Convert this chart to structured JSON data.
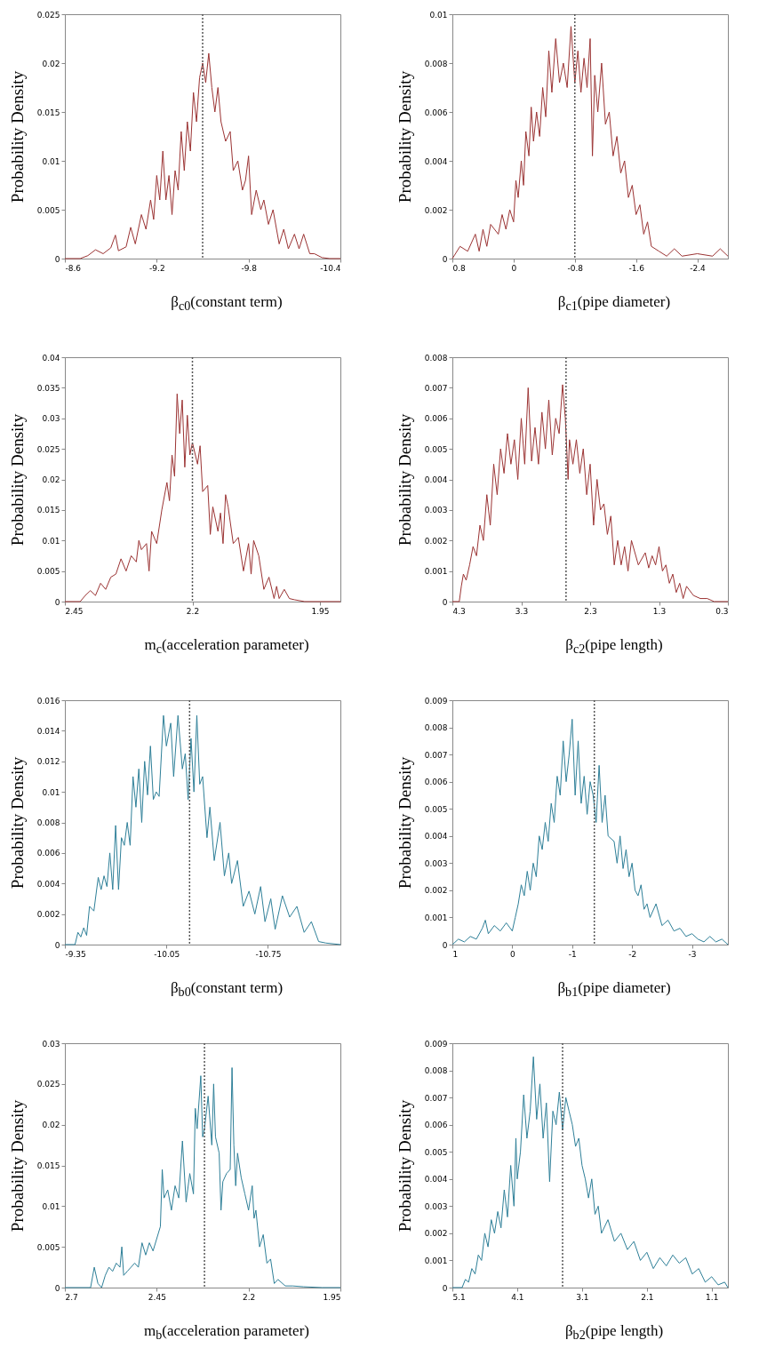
{
  "chart_data": [
    {
      "type": "line",
      "xlabel": "β$_{c0}$(constant term)",
      "ylabel": "Probability Density",
      "xlim": [
        -8.6,
        -10.4
      ],
      "xticks": [
        -8.6,
        -9.2,
        -9.8,
        -10.4
      ],
      "ylim": [
        0,
        0.025
      ],
      "yticks": [
        0,
        0.005,
        0.01,
        0.015,
        0.02,
        0.025
      ],
      "grid": false,
      "ref_lines": [
        {
          "axis": "x",
          "value": -9.5,
          "color": "#555555",
          "line_style": "dotted"
        }
      ],
      "series": [
        {
          "color": "#9b3333",
          "x": [
            -8.6,
            -8.7,
            -8.75,
            -8.8,
            -8.85,
            -8.9,
            -8.93,
            -8.95,
            -9.0,
            -9.03,
            -9.06,
            -9.1,
            -9.13,
            -9.16,
            -9.18,
            -9.2,
            -9.22,
            -9.24,
            -9.26,
            -9.28,
            -9.3,
            -9.32,
            -9.34,
            -9.36,
            -9.38,
            -9.4,
            -9.42,
            -9.44,
            -9.46,
            -9.48,
            -9.5,
            -9.52,
            -9.54,
            -9.56,
            -9.58,
            -9.6,
            -9.62,
            -9.65,
            -9.68,
            -9.7,
            -9.73,
            -9.76,
            -9.78,
            -9.8,
            -9.82,
            -9.85,
            -9.88,
            -9.9,
            -9.93,
            -9.96,
            -10.0,
            -10.03,
            -10.06,
            -10.1,
            -10.13,
            -10.16,
            -10.2,
            -10.23,
            -10.28,
            -10.33,
            -10.4
          ],
          "values": [
            0,
            0,
            0.0003,
            0.0009,
            0.0005,
            0.0011,
            0.0024,
            0.0008,
            0.0012,
            0.0032,
            0.0015,
            0.0045,
            0.003,
            0.006,
            0.004,
            0.0085,
            0.006,
            0.011,
            0.006,
            0.0085,
            0.0045,
            0.009,
            0.007,
            0.013,
            0.009,
            0.014,
            0.011,
            0.017,
            0.014,
            0.0185,
            0.02,
            0.018,
            0.021,
            0.0175,
            0.015,
            0.0175,
            0.014,
            0.012,
            0.013,
            0.009,
            0.01,
            0.007,
            0.008,
            0.0105,
            0.0045,
            0.007,
            0.005,
            0.006,
            0.0035,
            0.005,
            0.0015,
            0.003,
            0.001,
            0.0025,
            0.001,
            0.0025,
            0.0005,
            0.0005,
            0.0001,
            0,
            0
          ]
        }
      ]
    },
    {
      "type": "line",
      "xlabel": "β$_{c1}$(pipe diameter)",
      "ylabel": "Probability Density",
      "xlim": [
        0.8,
        -2.8
      ],
      "xticks": [
        0.8,
        0,
        -0.8,
        -1.6,
        -2.4
      ],
      "ylim": [
        0,
        0.01
      ],
      "yticks": [
        0,
        0.002,
        0.004,
        0.006,
        0.008,
        0.01
      ],
      "grid": false,
      "ref_lines": [
        {
          "axis": "x",
          "value": -0.8,
          "color": "#555555",
          "line_style": "dotted"
        }
      ],
      "series": [
        {
          "color": "#9b3333",
          "x": [
            0.8,
            0.7,
            0.6,
            0.5,
            0.45,
            0.4,
            0.35,
            0.3,
            0.2,
            0.15,
            0.1,
            0.05,
            0,
            -0.03,
            -0.06,
            -0.1,
            -0.13,
            -0.16,
            -0.2,
            -0.23,
            -0.26,
            -0.3,
            -0.34,
            -0.38,
            -0.42,
            -0.46,
            -0.5,
            -0.55,
            -0.6,
            -0.65,
            -0.7,
            -0.75,
            -0.8,
            -0.84,
            -0.88,
            -0.92,
            -0.96,
            -1.0,
            -1.03,
            -1.06,
            -1.1,
            -1.15,
            -1.2,
            -1.25,
            -1.3,
            -1.35,
            -1.4,
            -1.45,
            -1.5,
            -1.55,
            -1.6,
            -1.65,
            -1.7,
            -1.75,
            -1.8,
            -1.9,
            -2.0,
            -2.1,
            -2.2,
            -2.4,
            -2.6,
            -2.7,
            -2.8
          ],
          "values": [
            0,
            0.0005,
            0.0003,
            0.001,
            0.0003,
            0.0012,
            0.0005,
            0.0014,
            0.001,
            0.0018,
            0.0012,
            0.002,
            0.0015,
            0.0032,
            0.0025,
            0.004,
            0.003,
            0.0052,
            0.0042,
            0.0062,
            0.0048,
            0.006,
            0.005,
            0.007,
            0.0058,
            0.0085,
            0.0068,
            0.009,
            0.0072,
            0.008,
            0.007,
            0.0095,
            0.0072,
            0.0085,
            0.0068,
            0.0082,
            0.007,
            0.009,
            0.0042,
            0.0075,
            0.006,
            0.008,
            0.0055,
            0.006,
            0.0042,
            0.005,
            0.0035,
            0.004,
            0.0025,
            0.003,
            0.0018,
            0.0022,
            0.001,
            0.0015,
            0.0005,
            0.0003,
            0.0001,
            0.0004,
            0.0001,
            0.0002,
            0.0001,
            0.0004,
            0.0001
          ]
        }
      ]
    },
    {
      "type": "line",
      "xlabel": "m$_{c}$(acceleration parameter)",
      "ylabel": "Probability Density",
      "xlim": [
        2.45,
        1.91
      ],
      "xticks": [
        2.45,
        2.2,
        1.95
      ],
      "ylim": [
        0,
        0.04
      ],
      "yticks": [
        0,
        0.005,
        0.01,
        0.015,
        0.02,
        0.025,
        0.03,
        0.035,
        0.04
      ],
      "grid": false,
      "ref_lines": [
        {
          "axis": "x",
          "value": 2.2,
          "color": "#555555",
          "line_style": "dotted"
        }
      ],
      "series": [
        {
          "color": "#9b3333",
          "x": [
            2.45,
            2.42,
            2.41,
            2.4,
            2.39,
            2.38,
            2.37,
            2.36,
            2.35,
            2.34,
            2.33,
            2.32,
            2.31,
            2.305,
            2.3,
            2.29,
            2.285,
            2.28,
            2.27,
            2.26,
            2.25,
            2.245,
            2.24,
            2.235,
            2.23,
            2.225,
            2.22,
            2.215,
            2.21,
            2.205,
            2.2,
            2.19,
            2.185,
            2.18,
            2.17,
            2.165,
            2.16,
            2.15,
            2.145,
            2.14,
            2.135,
            2.13,
            2.12,
            2.11,
            2.1,
            2.09,
            2.085,
            2.08,
            2.07,
            2.06,
            2.05,
            2.04,
            2.035,
            2.03,
            2.02,
            2.01,
            2.0,
            1.98,
            1.91
          ],
          "values": [
            0,
            0,
            0.001,
            0.0018,
            0.001,
            0.003,
            0.002,
            0.004,
            0.0045,
            0.007,
            0.005,
            0.0075,
            0.0065,
            0.01,
            0.0085,
            0.0095,
            0.005,
            0.0115,
            0.0095,
            0.015,
            0.0195,
            0.0165,
            0.024,
            0.0205,
            0.034,
            0.0275,
            0.033,
            0.022,
            0.0305,
            0.024,
            0.026,
            0.0225,
            0.0255,
            0.018,
            0.019,
            0.011,
            0.0155,
            0.0115,
            0.0145,
            0.0095,
            0.0175,
            0.0155,
            0.0095,
            0.0105,
            0.005,
            0.0095,
            0.0045,
            0.01,
            0.0075,
            0.002,
            0.004,
            0.0005,
            0.0025,
            0.0005,
            0.002,
            0.0005,
            0.0003,
            0,
            0
          ]
        }
      ]
    },
    {
      "type": "line",
      "xlabel": "β$_{c2}$(pipe length)",
      "ylabel": "Probability Density",
      "xlim": [
        4.3,
        0.3
      ],
      "xticks": [
        4.3,
        3.3,
        2.3,
        1.3,
        0.3
      ],
      "ylim": [
        0,
        0.008
      ],
      "yticks": [
        0,
        0.001,
        0.002,
        0.003,
        0.004,
        0.005,
        0.006,
        0.007,
        0.008
      ],
      "grid": false,
      "ref_lines": [
        {
          "axis": "x",
          "value": 2.65,
          "color": "#555555",
          "line_style": "dotted"
        }
      ],
      "series": [
        {
          "color": "#9b3333",
          "x": [
            4.3,
            4.2,
            4.17,
            4.14,
            4.1,
            4.05,
            4.0,
            3.95,
            3.9,
            3.85,
            3.8,
            3.75,
            3.7,
            3.65,
            3.6,
            3.55,
            3.5,
            3.45,
            3.4,
            3.35,
            3.3,
            3.25,
            3.2,
            3.15,
            3.1,
            3.05,
            3.0,
            2.95,
            2.9,
            2.85,
            2.8,
            2.75,
            2.7,
            2.66,
            2.62,
            2.6,
            2.55,
            2.5,
            2.45,
            2.4,
            2.35,
            2.3,
            2.25,
            2.2,
            2.15,
            2.1,
            2.05,
            2.0,
            1.95,
            1.9,
            1.85,
            1.8,
            1.75,
            1.7,
            1.6,
            1.5,
            1.45,
            1.4,
            1.35,
            1.3,
            1.25,
            1.2,
            1.15,
            1.1,
            1.05,
            1.0,
            0.95,
            0.9,
            0.8,
            0.7,
            0.6,
            0.5,
            0.3
          ],
          "values": [
            0,
            0,
            0.0005,
            0.0009,
            0.0007,
            0.0012,
            0.0018,
            0.0015,
            0.0025,
            0.002,
            0.0035,
            0.0025,
            0.0045,
            0.0035,
            0.005,
            0.0042,
            0.0055,
            0.0045,
            0.0053,
            0.004,
            0.006,
            0.0045,
            0.007,
            0.0046,
            0.0057,
            0.0045,
            0.0062,
            0.005,
            0.0066,
            0.0048,
            0.006,
            0.0055,
            0.0071,
            0.006,
            0.004,
            0.0053,
            0.0045,
            0.0053,
            0.0042,
            0.005,
            0.0035,
            0.0045,
            0.0025,
            0.004,
            0.003,
            0.0032,
            0.0022,
            0.0028,
            0.0012,
            0.002,
            0.0012,
            0.0018,
            0.001,
            0.002,
            0.0012,
            0.0016,
            0.0011,
            0.0015,
            0.0012,
            0.0018,
            0.001,
            0.0012,
            0.0006,
            0.0009,
            0.0003,
            0.0006,
            0.0001,
            0.0005,
            0.0002,
            0.0001,
            0.0001,
            0,
            0
          ]
        }
      ]
    },
    {
      "type": "line",
      "xlabel": "β$_{b0}$(constant term)",
      "ylabel": "Probability Density",
      "xlim": [
        -9.35,
        -11.25
      ],
      "xticks": [
        -9.35,
        -10.05,
        -10.75
      ],
      "ylim": [
        0,
        0.016
      ],
      "yticks": [
        0,
        0.002,
        0.004,
        0.006,
        0.008,
        0.01,
        0.012,
        0.014,
        0.016
      ],
      "grid": false,
      "ref_lines": [
        {
          "axis": "x",
          "value": -10.21,
          "color": "#555555",
          "line_style": "dotted"
        }
      ],
      "series": [
        {
          "color": "#2e7f98",
          "x": [
            -9.35,
            -9.42,
            -9.44,
            -9.46,
            -9.48,
            -9.5,
            -9.52,
            -9.55,
            -9.58,
            -9.6,
            -9.62,
            -9.64,
            -9.66,
            -9.68,
            -9.7,
            -9.72,
            -9.74,
            -9.76,
            -9.78,
            -9.8,
            -9.82,
            -9.84,
            -9.86,
            -9.88,
            -9.9,
            -9.92,
            -9.94,
            -9.96,
            -9.98,
            -10.0,
            -10.03,
            -10.05,
            -10.08,
            -10.1,
            -10.13,
            -10.16,
            -10.18,
            -10.2,
            -10.22,
            -10.24,
            -10.26,
            -10.28,
            -10.3,
            -10.33,
            -10.35,
            -10.38,
            -10.42,
            -10.45,
            -10.48,
            -10.5,
            -10.54,
            -10.58,
            -10.62,
            -10.66,
            -10.7,
            -10.73,
            -10.77,
            -10.8,
            -10.85,
            -10.9,
            -10.95,
            -11.0,
            -11.05,
            -11.1,
            -11.15,
            -11.25
          ],
          "values": [
            0,
            0,
            0.0008,
            0.0005,
            0.0011,
            0.0006,
            0.0025,
            0.0022,
            0.0044,
            0.0036,
            0.0045,
            0.0038,
            0.006,
            0.0036,
            0.0078,
            0.0036,
            0.007,
            0.0065,
            0.008,
            0.0065,
            0.011,
            0.009,
            0.0115,
            0.008,
            0.012,
            0.0098,
            0.013,
            0.0095,
            0.01,
            0.0097,
            0.015,
            0.013,
            0.0145,
            0.011,
            0.015,
            0.0115,
            0.0125,
            0.0095,
            0.0135,
            0.01,
            0.015,
            0.0105,
            0.011,
            0.007,
            0.009,
            0.0055,
            0.008,
            0.0045,
            0.006,
            0.004,
            0.0055,
            0.0025,
            0.0035,
            0.002,
            0.0038,
            0.0015,
            0.003,
            0.001,
            0.0032,
            0.0018,
            0.0025,
            0.0008,
            0.0015,
            0.0002,
            0.0001,
            0
          ]
        }
      ]
    },
    {
      "type": "line",
      "xlabel": "β$_{b1}$(pipe diameter)",
      "ylabel": "Probability Density",
      "xlim": [
        1,
        -3.6
      ],
      "xticks": [
        1,
        0,
        -1,
        -2,
        -3
      ],
      "ylim": [
        0,
        0.009
      ],
      "yticks": [
        0,
        0.001,
        0.002,
        0.003,
        0.004,
        0.005,
        0.006,
        0.007,
        0.008,
        0.009
      ],
      "grid": false,
      "ref_lines": [
        {
          "axis": "x",
          "value": -1.37,
          "color": "#555555",
          "line_style": "dotted"
        }
      ],
      "series": [
        {
          "color": "#2e7f98",
          "x": [
            1,
            0.9,
            0.8,
            0.7,
            0.6,
            0.5,
            0.45,
            0.4,
            0.3,
            0.2,
            0.1,
            0,
            -0.05,
            -0.1,
            -0.15,
            -0.2,
            -0.25,
            -0.3,
            -0.35,
            -0.4,
            -0.45,
            -0.5,
            -0.55,
            -0.6,
            -0.65,
            -0.7,
            -0.75,
            -0.8,
            -0.85,
            -0.9,
            -0.95,
            -1.0,
            -1.05,
            -1.1,
            -1.15,
            -1.2,
            -1.25,
            -1.3,
            -1.35,
            -1.4,
            -1.45,
            -1.5,
            -1.55,
            -1.6,
            -1.7,
            -1.75,
            -1.8,
            -1.85,
            -1.9,
            -1.95,
            -2.0,
            -2.05,
            -2.1,
            -2.15,
            -2.2,
            -2.25,
            -2.3,
            -2.4,
            -2.5,
            -2.6,
            -2.7,
            -2.8,
            -2.9,
            -3.0,
            -3.1,
            -3.2,
            -3.3,
            -3.4,
            -3.5,
            -3.6
          ],
          "values": [
            0,
            0.0002,
            0.0001,
            0.0003,
            0.0002,
            0.0006,
            0.0009,
            0.0004,
            0.0007,
            0.0005,
            0.0008,
            0.0005,
            0.001,
            0.0015,
            0.0022,
            0.0018,
            0.0027,
            0.002,
            0.003,
            0.0025,
            0.004,
            0.0035,
            0.0045,
            0.0038,
            0.0052,
            0.0045,
            0.0062,
            0.0055,
            0.0075,
            0.006,
            0.007,
            0.0083,
            0.0055,
            0.0075,
            0.0052,
            0.0062,
            0.0048,
            0.006,
            0.0055,
            0.0045,
            0.0066,
            0.0045,
            0.0055,
            0.004,
            0.0038,
            0.003,
            0.004,
            0.0028,
            0.0035,
            0.0025,
            0.003,
            0.002,
            0.0018,
            0.0022,
            0.0013,
            0.0015,
            0.001,
            0.0015,
            0.0007,
            0.0009,
            0.0005,
            0.0006,
            0.0003,
            0.0004,
            0.0002,
            0.0001,
            0.0003,
            0.0001,
            0.0002,
            0
          ]
        }
      ]
    },
    {
      "type": "line",
      "xlabel": "m$_{b}$(acceleration parameter)",
      "ylabel": "Probability Density",
      "xlim": [
        2.7,
        1.95
      ],
      "xticks": [
        2.7,
        2.45,
        2.2,
        1.95
      ],
      "ylim": [
        0,
        0.03
      ],
      "yticks": [
        0,
        0.005,
        0.01,
        0.015,
        0.02,
        0.025,
        0.03
      ],
      "grid": false,
      "ref_lines": [
        {
          "axis": "x",
          "value": 2.32,
          "color": "#555555",
          "line_style": "dotted"
        }
      ],
      "series": [
        {
          "color": "#2e7f98",
          "x": [
            2.7,
            2.63,
            2.62,
            2.61,
            2.6,
            2.59,
            2.58,
            2.57,
            2.56,
            2.55,
            2.545,
            2.54,
            2.53,
            2.52,
            2.51,
            2.5,
            2.49,
            2.48,
            2.47,
            2.46,
            2.45,
            2.44,
            2.435,
            2.43,
            2.42,
            2.41,
            2.4,
            2.39,
            2.38,
            2.37,
            2.36,
            2.35,
            2.345,
            2.34,
            2.33,
            2.325,
            2.32,
            2.31,
            2.3,
            2.295,
            2.29,
            2.28,
            2.275,
            2.27,
            2.26,
            2.25,
            2.245,
            2.24,
            2.235,
            2.23,
            2.22,
            2.21,
            2.2,
            2.19,
            2.185,
            2.18,
            2.17,
            2.16,
            2.15,
            2.14,
            2.13,
            2.12,
            2.1,
            2.08,
            2.05,
            2.0,
            1.95
          ],
          "values": [
            0,
            0,
            0.0025,
            0.0005,
            0,
            0.0015,
            0.0025,
            0.002,
            0.003,
            0.0025,
            0.005,
            0.0015,
            0.002,
            0.0025,
            0.003,
            0.0025,
            0.0055,
            0.004,
            0.0055,
            0.0045,
            0.006,
            0.0075,
            0.0145,
            0.011,
            0.012,
            0.0095,
            0.0125,
            0.011,
            0.018,
            0.0105,
            0.014,
            0.0115,
            0.022,
            0.0195,
            0.026,
            0.0185,
            0.0195,
            0.0235,
            0.0175,
            0.025,
            0.0185,
            0.0165,
            0.0095,
            0.013,
            0.014,
            0.0145,
            0.027,
            0.0175,
            0.0125,
            0.0165,
            0.0135,
            0.0115,
            0.0095,
            0.0125,
            0.0085,
            0.0095,
            0.005,
            0.0065,
            0.003,
            0.0035,
            0.0005,
            0.001,
            0.0002,
            0.0002,
            0.0001,
            0,
            0
          ]
        }
      ]
    },
    {
      "type": "line",
      "xlabel": "β$_{b2}$(pipe length)",
      "ylabel": "Probability Density",
      "xlim": [
        5.1,
        0.85
      ],
      "xticks": [
        5.1,
        4.1,
        3.1,
        2.1,
        1.1
      ],
      "ylim": [
        0,
        0.009
      ],
      "yticks": [
        0,
        0.001,
        0.002,
        0.003,
        0.004,
        0.005,
        0.006,
        0.007,
        0.008,
        0.009
      ],
      "grid": false,
      "ref_lines": [
        {
          "axis": "x",
          "value": 3.4,
          "color": "#555555",
          "line_style": "dotted"
        }
      ],
      "series": [
        {
          "color": "#2e7f98",
          "x": [
            5.1,
            4.95,
            4.9,
            4.85,
            4.8,
            4.75,
            4.7,
            4.65,
            4.6,
            4.55,
            4.5,
            4.45,
            4.4,
            4.35,
            4.3,
            4.25,
            4.2,
            4.15,
            4.12,
            4.1,
            4.05,
            4.0,
            3.95,
            3.9,
            3.85,
            3.8,
            3.75,
            3.7,
            3.65,
            3.6,
            3.55,
            3.5,
            3.45,
            3.4,
            3.35,
            3.3,
            3.25,
            3.2,
            3.15,
            3.1,
            3.05,
            3.0,
            2.95,
            2.9,
            2.85,
            2.8,
            2.7,
            2.6,
            2.5,
            2.4,
            2.3,
            2.2,
            2.1,
            2.0,
            1.9,
            1.8,
            1.7,
            1.6,
            1.5,
            1.4,
            1.3,
            1.2,
            1.1,
            1.0,
            0.9,
            0.85
          ],
          "values": [
            0,
            0,
            0.0003,
            0.0002,
            0.0007,
            0.0005,
            0.0012,
            0.001,
            0.002,
            0.0015,
            0.0025,
            0.002,
            0.0028,
            0.0022,
            0.0036,
            0.0026,
            0.0045,
            0.003,
            0.0055,
            0.004,
            0.005,
            0.0071,
            0.0055,
            0.0065,
            0.0085,
            0.0062,
            0.0075,
            0.0055,
            0.0068,
            0.0039,
            0.0065,
            0.006,
            0.0072,
            0.0058,
            0.007,
            0.0065,
            0.006,
            0.0052,
            0.0055,
            0.0045,
            0.004,
            0.0033,
            0.004,
            0.0027,
            0.003,
            0.002,
            0.0025,
            0.0017,
            0.002,
            0.0014,
            0.0017,
            0.001,
            0.0013,
            0.0007,
            0.0011,
            0.0008,
            0.0012,
            0.0009,
            0.0011,
            0.0005,
            0.0007,
            0.0002,
            0.0004,
            0.0001,
            0.0002,
            0
          ]
        }
      ]
    }
  ]
}
